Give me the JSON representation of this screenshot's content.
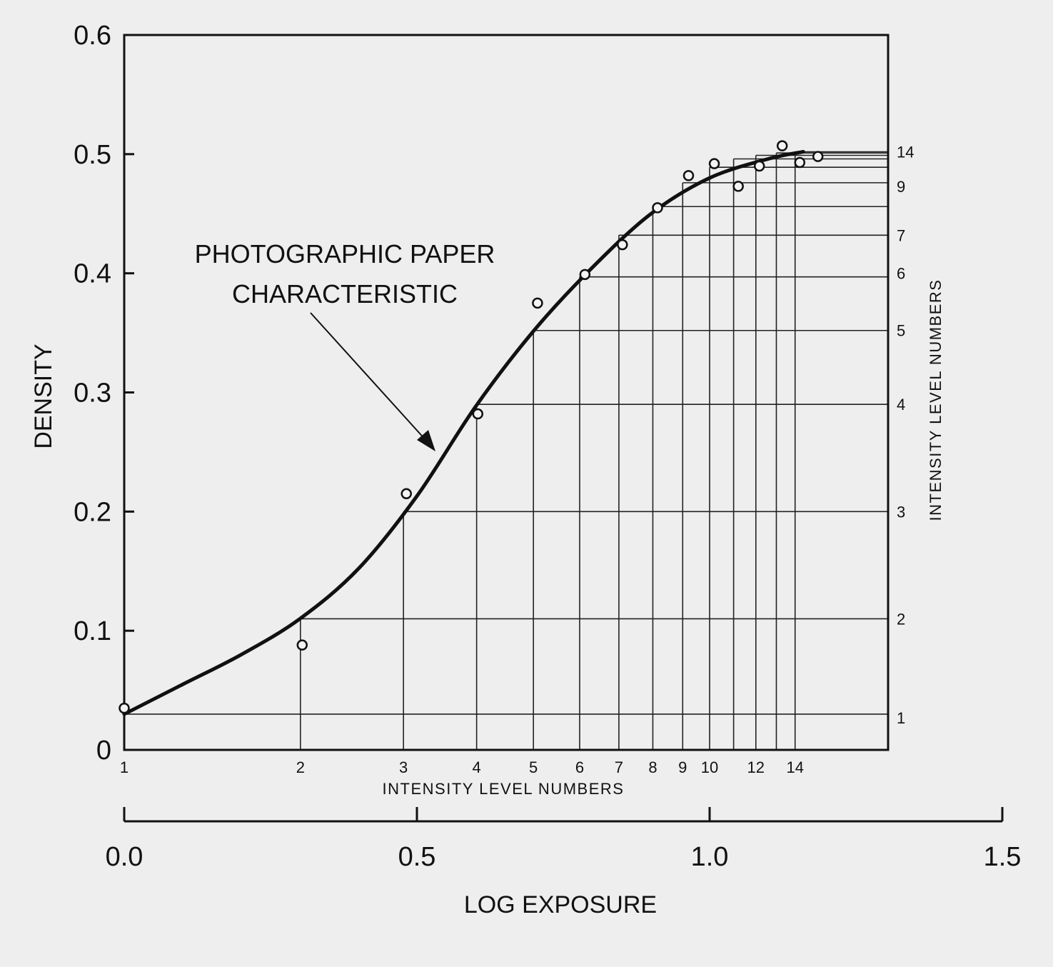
{
  "chart_data": {
    "type": "line",
    "annotation": [
      "PHOTOGRAPHIC PAPER",
      "CHARACTERISTIC"
    ],
    "xlabel": "LOG EXPOSURE",
    "ylabel": "DENSITY",
    "x_level_label": "INTENSITY LEVEL NUMBERS",
    "y_level_label": "INTENSITY LEVEL NUMBERS",
    "xlim": [
      0.0,
      1.5
    ],
    "ylim": [
      0.0,
      0.6
    ],
    "x_ticks": [
      "0.0",
      "0.5",
      "1.0",
      "1.5"
    ],
    "y_ticks": [
      "0",
      "0.1",
      "0.2",
      "0.3",
      "0.4",
      "0.5",
      "0.6"
    ],
    "level_x": [
      0.0,
      0.301,
      0.477,
      0.602,
      0.699,
      0.778,
      0.845,
      0.903,
      0.954,
      1.0,
      1.041,
      1.079,
      1.114,
      1.146
    ],
    "level_y": [
      0.03,
      0.11,
      0.2,
      0.29,
      0.352,
      0.397,
      0.432,
      0.456,
      0.476,
      0.489,
      0.496,
      0.499,
      0.501,
      0.502
    ],
    "bottom_level_labels": [
      {
        "x": 0.0,
        "text": "1"
      },
      {
        "x": 0.301,
        "text": "2"
      },
      {
        "x": 0.477,
        "text": "3"
      },
      {
        "x": 0.602,
        "text": "4"
      },
      {
        "x": 0.699,
        "text": "5"
      },
      {
        "x": 0.778,
        "text": "6"
      },
      {
        "x": 0.845,
        "text": "7"
      },
      {
        "x": 0.903,
        "text": "8"
      },
      {
        "x": 0.954,
        "text": "9"
      },
      {
        "x": 1.0,
        "text": "10"
      },
      {
        "x": 1.079,
        "text": "12"
      },
      {
        "x": 1.146,
        "text": "14"
      }
    ],
    "right_level_labels": [
      {
        "y": 0.027,
        "text": "1"
      },
      {
        "y": 0.11,
        "text": "2"
      },
      {
        "y": 0.2,
        "text": "3"
      },
      {
        "y": 0.29,
        "text": "4"
      },
      {
        "y": 0.352,
        "text": "5"
      },
      {
        "y": 0.4,
        "text": "6"
      },
      {
        "y": 0.432,
        "text": "7"
      },
      {
        "y": 0.473,
        "text": "9"
      },
      {
        "y": 0.502,
        "text": "14"
      }
    ],
    "series": [
      {
        "type": "curve",
        "x": [
          0.0,
          0.1,
          0.2,
          0.3,
          0.4,
          0.5,
          0.6,
          0.7,
          0.8,
          0.9,
          1.0,
          1.1,
          1.16
        ],
        "y": [
          0.03,
          0.055,
          0.08,
          0.11,
          0.152,
          0.213,
          0.288,
          0.352,
          0.405,
          0.45,
          0.48,
          0.496,
          0.502
        ]
      },
      {
        "type": "scatter",
        "x": [
          0.0,
          0.304,
          0.482,
          0.604,
          0.706,
          0.787,
          0.851,
          0.911,
          0.964,
          1.008,
          1.049,
          1.085,
          1.124,
          1.154,
          1.185
        ],
        "y": [
          0.035,
          0.088,
          0.215,
          0.282,
          0.375,
          0.399,
          0.424,
          0.455,
          0.482,
          0.492,
          0.473,
          0.49,
          0.507,
          0.493,
          0.498
        ]
      }
    ]
  }
}
